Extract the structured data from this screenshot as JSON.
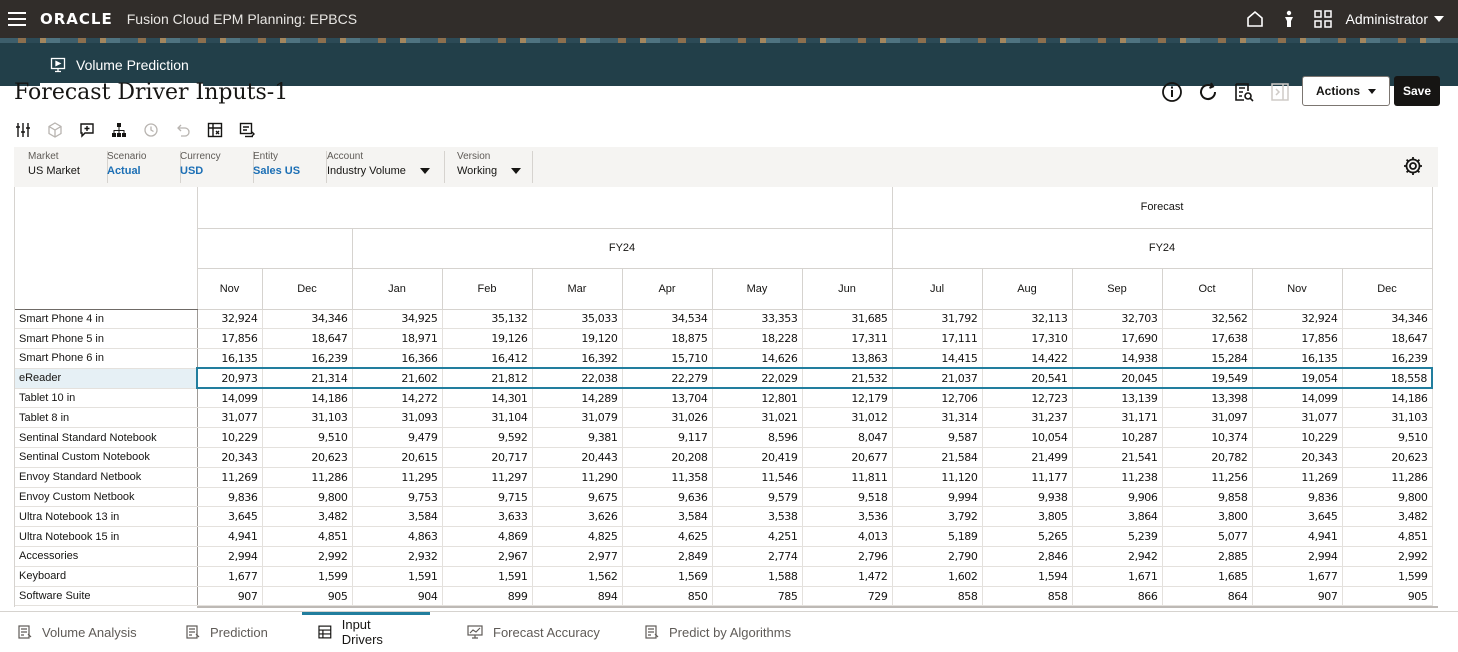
{
  "header": {
    "logo": "ORACLE",
    "app_title": "Fusion Cloud EPM Planning:  EPBCS",
    "user": "Administrator"
  },
  "tab": {
    "label": "Volume Prediction"
  },
  "page": {
    "title": "Forecast Driver Inputs-1",
    "actions_label": "Actions",
    "save_label": "Save"
  },
  "pov": [
    {
      "label": "Market",
      "value": "US Market",
      "link": false,
      "dropdown": false
    },
    {
      "label": "Scenario",
      "value": "Actual",
      "link": true,
      "dropdown": false
    },
    {
      "label": "Currency",
      "value": "USD",
      "link": true,
      "dropdown": false
    },
    {
      "label": "Entity",
      "value": "Sales US",
      "link": true,
      "dropdown": false
    },
    {
      "label": "Account",
      "value": "Industry Volume",
      "link": false,
      "dropdown": true
    },
    {
      "label": "Version",
      "value": "Working",
      "link": false,
      "dropdown": true
    }
  ],
  "grid": {
    "header_scenario": "Forecast",
    "header_year_1": "FY24",
    "header_year_2": "FY24",
    "months": [
      "Nov",
      "Dec",
      "Jan",
      "Feb",
      "Mar",
      "Apr",
      "May",
      "Jun",
      "Jul",
      "Aug",
      "Sep",
      "Oct",
      "Nov",
      "Dec"
    ],
    "rows": [
      {
        "label": "Smart Phone 4 in",
        "values": [
          "32,924",
          "34,346",
          "34,925",
          "35,132",
          "35,033",
          "34,534",
          "33,353",
          "31,685",
          "31,792",
          "32,113",
          "32,703",
          "32,562",
          "32,924",
          "34,346"
        ]
      },
      {
        "label": "Smart Phone 5 in",
        "values": [
          "17,856",
          "18,647",
          "18,971",
          "19,126",
          "19,120",
          "18,875",
          "18,228",
          "17,311",
          "17,111",
          "17,310",
          "17,690",
          "17,638",
          "17,856",
          "18,647"
        ]
      },
      {
        "label": "Smart Phone 6 in",
        "values": [
          "16,135",
          "16,239",
          "16,366",
          "16,412",
          "16,392",
          "15,710",
          "14,626",
          "13,863",
          "14,415",
          "14,422",
          "14,938",
          "15,284",
          "16,135",
          "16,239"
        ]
      },
      {
        "label": "eReader",
        "selected": true,
        "values": [
          "20,973",
          "21,314",
          "21,602",
          "21,812",
          "22,038",
          "22,279",
          "22,029",
          "21,532",
          "21,037",
          "20,541",
          "20,045",
          "19,549",
          "19,054",
          "18,558"
        ]
      },
      {
        "label": "Tablet 10 in",
        "values": [
          "14,099",
          "14,186",
          "14,272",
          "14,301",
          "14,289",
          "13,704",
          "12,801",
          "12,179",
          "12,706",
          "12,723",
          "13,139",
          "13,398",
          "14,099",
          "14,186"
        ]
      },
      {
        "label": "Tablet 8 in",
        "values": [
          "31,077",
          "31,103",
          "31,093",
          "31,104",
          "31,079",
          "31,026",
          "31,021",
          "31,012",
          "31,314",
          "31,237",
          "31,171",
          "31,097",
          "31,077",
          "31,103"
        ]
      },
      {
        "label": "Sentinal Standard Notebook",
        "values": [
          "10,229",
          "9,510",
          "9,479",
          "9,592",
          "9,381",
          "9,117",
          "8,596",
          "8,047",
          "9,587",
          "10,054",
          "10,287",
          "10,374",
          "10,229",
          "9,510"
        ]
      },
      {
        "label": "Sentinal Custom Notebook",
        "values": [
          "20,343",
          "20,623",
          "20,615",
          "20,717",
          "20,443",
          "20,208",
          "20,419",
          "20,677",
          "21,584",
          "21,499",
          "21,541",
          "20,782",
          "20,343",
          "20,623"
        ]
      },
      {
        "label": "Envoy Standard Netbook",
        "values": [
          "11,269",
          "11,286",
          "11,295",
          "11,297",
          "11,290",
          "11,358",
          "11,546",
          "11,811",
          "11,120",
          "11,177",
          "11,238",
          "11,256",
          "11,269",
          "11,286"
        ]
      },
      {
        "label": "Envoy Custom Netbook",
        "values": [
          "9,836",
          "9,800",
          "9,753",
          "9,715",
          "9,675",
          "9,636",
          "9,579",
          "9,518",
          "9,994",
          "9,938",
          "9,906",
          "9,858",
          "9,836",
          "9,800"
        ]
      },
      {
        "label": "Ultra Notebook 13 in",
        "values": [
          "3,645",
          "3,482",
          "3,584",
          "3,633",
          "3,626",
          "3,584",
          "3,538",
          "3,536",
          "3,792",
          "3,805",
          "3,864",
          "3,800",
          "3,645",
          "3,482"
        ]
      },
      {
        "label": "Ultra Notebook 15 in",
        "values": [
          "4,941",
          "4,851",
          "4,863",
          "4,869",
          "4,825",
          "4,625",
          "4,251",
          "4,013",
          "5,189",
          "5,265",
          "5,239",
          "5,077",
          "4,941",
          "4,851"
        ]
      },
      {
        "label": "Accessories",
        "values": [
          "2,994",
          "2,992",
          "2,932",
          "2,967",
          "2,977",
          "2,849",
          "2,774",
          "2,796",
          "2,790",
          "2,846",
          "2,942",
          "2,885",
          "2,994",
          "2,992"
        ]
      },
      {
        "label": "Keyboard",
        "values": [
          "1,677",
          "1,599",
          "1,591",
          "1,591",
          "1,562",
          "1,569",
          "1,588",
          "1,472",
          "1,602",
          "1,594",
          "1,671",
          "1,685",
          "1,677",
          "1,599"
        ]
      },
      {
        "label": "Software Suite",
        "values": [
          "907",
          "905",
          "904",
          "899",
          "894",
          "850",
          "785",
          "729",
          "858",
          "858",
          "866",
          "864",
          "907",
          "905"
        ]
      }
    ]
  },
  "bottom_tabs": [
    {
      "label": "Volume Analysis",
      "active": false
    },
    {
      "label": "Prediction",
      "active": false
    },
    {
      "label": "Input Drivers",
      "active": true
    },
    {
      "label": "Forecast Accuracy",
      "active": false
    },
    {
      "label": "Predict by Algorithms",
      "active": false
    }
  ],
  "colors": {
    "topbar": "#312d2a",
    "tabband": "#223f49",
    "accent": "#227e9e",
    "link": "#1c6fb5"
  }
}
